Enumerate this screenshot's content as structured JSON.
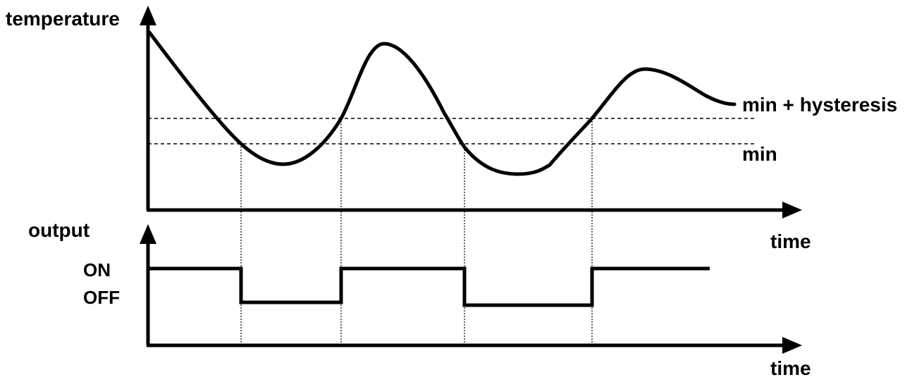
{
  "top_chart": {
    "y_axis_label": "temperature",
    "x_axis_label": "time",
    "levels": {
      "upper_label": "min + hysteresis",
      "lower_label": "min"
    }
  },
  "bottom_chart": {
    "y_axis_label": "output",
    "x_axis_label": "time",
    "state_on": "ON",
    "state_off": "OFF",
    "sequence": [
      "ON",
      "OFF",
      "ON",
      "OFF",
      "ON"
    ]
  }
}
